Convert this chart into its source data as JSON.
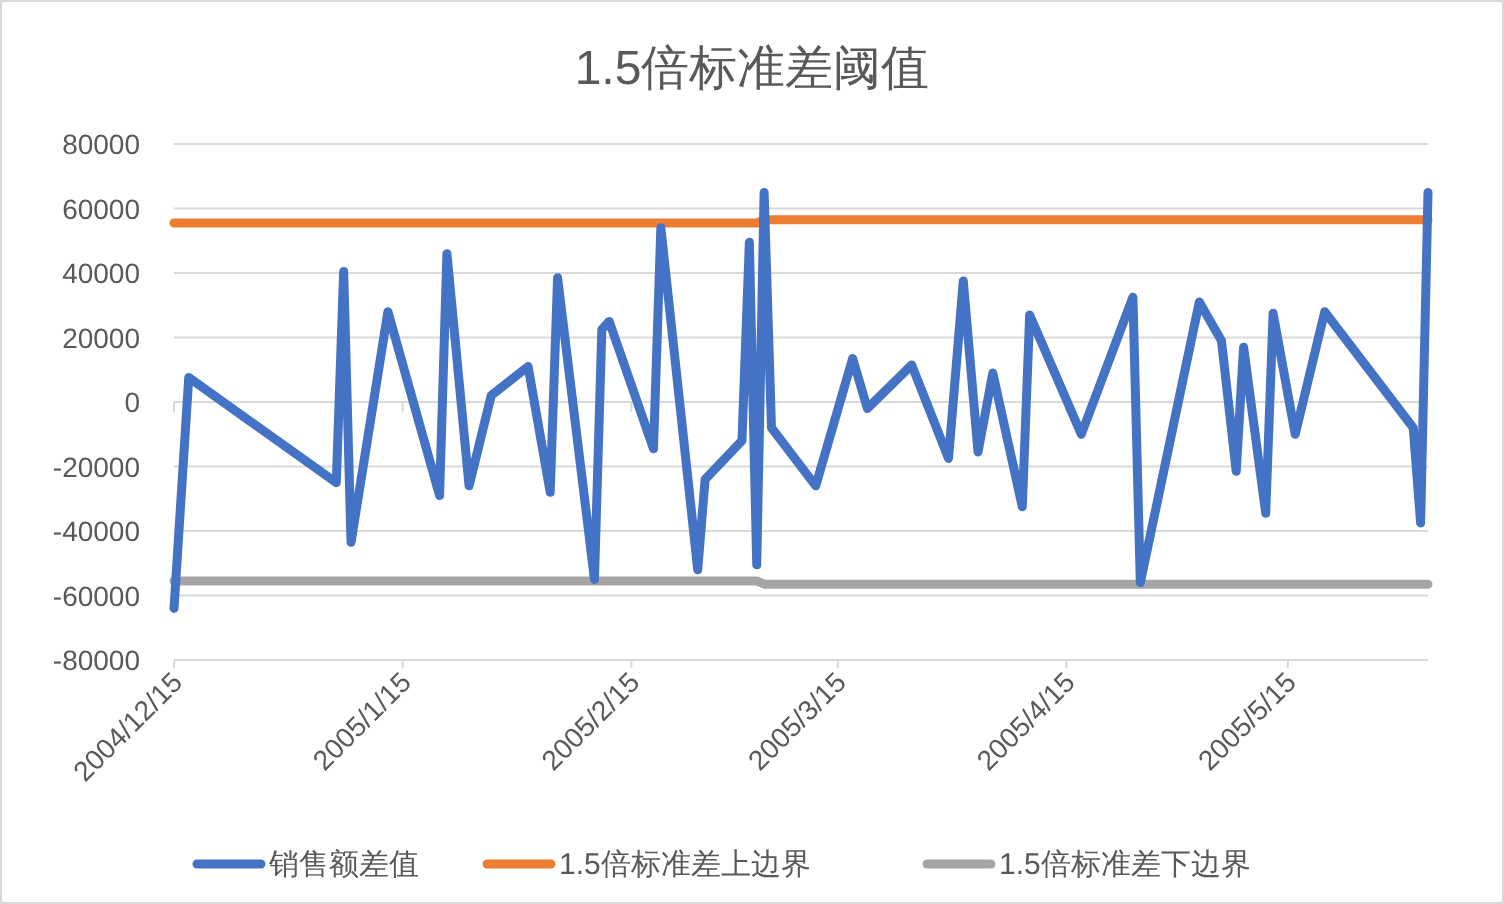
{
  "chart_data": {
    "type": "line",
    "title": "1.5倍标准差阈值",
    "x": [
      "2004-12-15",
      "2004-12-17",
      "2005-01-06",
      "2005-01-07",
      "2005-01-08",
      "2005-01-13",
      "2005-01-20",
      "2005-01-21",
      "2005-01-24",
      "2005-01-27",
      "2005-02-01",
      "2005-02-04",
      "2005-02-05",
      "2005-02-10",
      "2005-02-11",
      "2005-02-12",
      "2005-02-18",
      "2005-02-19",
      "2005-02-24",
      "2005-02-25",
      "2005-03-02",
      "2005-03-03",
      "2005-03-04",
      "2005-03-05",
      "2005-03-06",
      "2005-03-12",
      "2005-03-17",
      "2005-03-19",
      "2005-03-25",
      "2005-03-30",
      "2005-04-01",
      "2005-04-03",
      "2005-04-05",
      "2005-04-09",
      "2005-04-10",
      "2005-04-17",
      "2005-04-24",
      "2005-04-25",
      "2005-05-03",
      "2005-05-06",
      "2005-05-08",
      "2005-05-09",
      "2005-05-12",
      "2005-05-13",
      "2005-05-16",
      "2005-05-20",
      "2005-06-01",
      "2005-06-02",
      "2005-06-03"
    ],
    "series": [
      {
        "name": "销售额差值",
        "color": "#4472c4",
        "values": [
          -64000,
          7600,
          -25000,
          40500,
          -43500,
          28000,
          -29000,
          46000,
          -26000,
          2000,
          11000,
          -28000,
          38500,
          -55000,
          22500,
          25000,
          -14500,
          54000,
          -52000,
          -24000,
          -12000,
          49500,
          -50500,
          65000,
          -8000,
          -26000,
          13500,
          -2000,
          11500,
          -17500,
          37500,
          -15500,
          9000,
          -32500,
          27000,
          -10000,
          32500,
          -56000,
          31000,
          19000,
          -21500,
          17000,
          -34500,
          27500,
          -10000,
          28000,
          -8000,
          -37500,
          65000
        ]
      },
      {
        "name": "1.5倍标准差上边界",
        "color": "#ed7d31",
        "values": [
          55500,
          55500,
          55500,
          55500,
          55500,
          55500,
          55500,
          55500,
          55500,
          55500,
          55500,
          55500,
          55500,
          55500,
          55500,
          55500,
          55500,
          55500,
          55500,
          55500,
          55500,
          55500,
          55500,
          56500,
          56500,
          56500,
          56500,
          56500,
          56500,
          56500,
          56500,
          56500,
          56500,
          56500,
          56500,
          56500,
          56500,
          56500,
          56500,
          56500,
          56500,
          56500,
          56500,
          56500,
          56500,
          56500,
          56500,
          56500,
          56500
        ]
      },
      {
        "name": "1.5倍标准差下边界",
        "color": "#a5a5a5",
        "values": [
          -55500,
          -55500,
          -55500,
          -55500,
          -55500,
          -55500,
          -55500,
          -55500,
          -55500,
          -55500,
          -55500,
          -55500,
          -55500,
          -55500,
          -55500,
          -55500,
          -55500,
          -55500,
          -55500,
          -55500,
          -55500,
          -55500,
          -55500,
          -56500,
          -56500,
          -56500,
          -56500,
          -56500,
          -56500,
          -56500,
          -56500,
          -56500,
          -56500,
          -56500,
          -56500,
          -56500,
          -56500,
          -56500,
          -56500,
          -56500,
          -56500,
          -56500,
          -56500,
          -56500,
          -56500,
          -56500,
          -56500,
          -56500,
          -56500
        ]
      }
    ],
    "xlim": [
      "2004-12-15",
      "2005-06-03"
    ],
    "xticks": [
      {
        "value": "2004-12-15",
        "label": "2004/12/15"
      },
      {
        "value": "2005-01-15",
        "label": "2005/1/15"
      },
      {
        "value": "2005-02-15",
        "label": "2005/2/15"
      },
      {
        "value": "2005-03-15",
        "label": "2005/3/15"
      },
      {
        "value": "2005-04-15",
        "label": "2005/4/15"
      },
      {
        "value": "2005-05-15",
        "label": "2005/5/15"
      }
    ],
    "ylim": [
      -80000,
      80000
    ],
    "yticks": [
      -80000,
      -60000,
      -40000,
      -20000,
      0,
      20000,
      40000,
      60000,
      80000
    ],
    "grid": "y",
    "legend": "bottom"
  }
}
